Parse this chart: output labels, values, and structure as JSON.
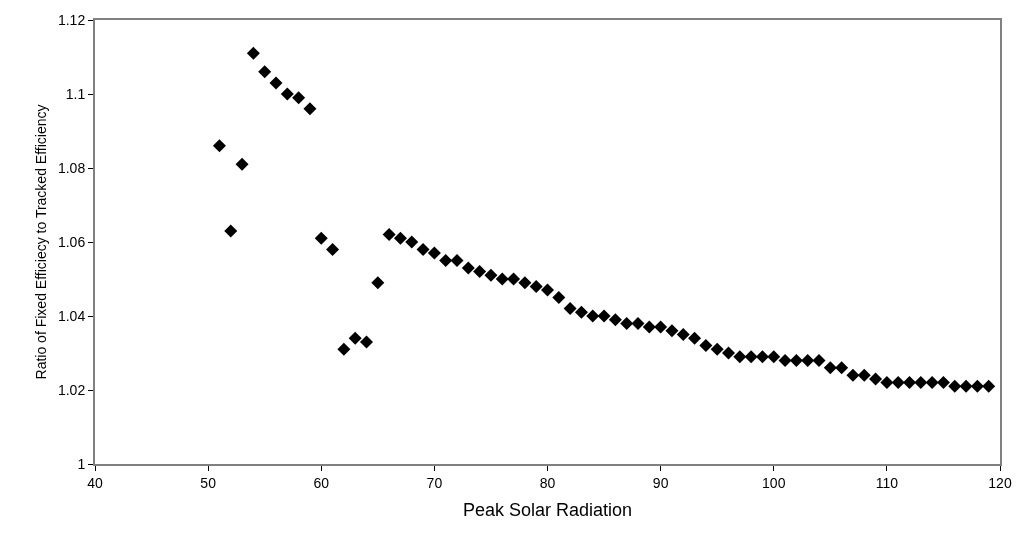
{
  "chart_data": {
    "type": "scatter",
    "xlabel": "Peak Solar Radiation",
    "ylabel": "Ratio of Fixed Efficiecy to Tracked Efficiency",
    "x": [
      51,
      52,
      53,
      54,
      55,
      56,
      57,
      58,
      59,
      60,
      61,
      62,
      63,
      64,
      65,
      66,
      67,
      68,
      69,
      70,
      71,
      72,
      73,
      74,
      75,
      76,
      77,
      78,
      79,
      80,
      81,
      82,
      83,
      84,
      85,
      86,
      87,
      88,
      89,
      90,
      91,
      92,
      93,
      94,
      95,
      96,
      97,
      98,
      99,
      100,
      101,
      102,
      103,
      104,
      105,
      106,
      107,
      108,
      109,
      110,
      111,
      112,
      113,
      114,
      115,
      116,
      117,
      118,
      119
    ],
    "series": [
      {
        "color": "#000000",
        "values": [
          1.086,
          1.063,
          1.081,
          1.111,
          1.106,
          1.103,
          1.1,
          1.099,
          1.096,
          1.061,
          1.058,
          1.031,
          1.034,
          1.033,
          1.049,
          1.062,
          1.061,
          1.06,
          1.058,
          1.057,
          1.055,
          1.055,
          1.053,
          1.052,
          1.051,
          1.05,
          1.05,
          1.049,
          1.048,
          1.047,
          1.045,
          1.042,
          1.041,
          1.04,
          1.04,
          1.039,
          1.038,
          1.038,
          1.037,
          1.037,
          1.036,
          1.035,
          1.034,
          1.032,
          1.031,
          1.03,
          1.029,
          1.029,
          1.029,
          1.029,
          1.028,
          1.028,
          1.028,
          1.028,
          1.026,
          1.026,
          1.024,
          1.024,
          1.023,
          1.022,
          1.022,
          1.022,
          1.022,
          1.022,
          1.022,
          1.021,
          1.021,
          1.021,
          1.021
        ]
      }
    ],
    "xlim": [
      40,
      120
    ],
    "xticks": [
      40,
      50,
      60,
      70,
      80,
      90,
      100,
      110,
      120
    ],
    "ylim": [
      1,
      1.12
    ],
    "yticks": [
      1,
      1.02,
      1.04,
      1.06,
      1.08,
      1.1,
      1.12
    ],
    "grid": false,
    "marker": "diamond"
  }
}
